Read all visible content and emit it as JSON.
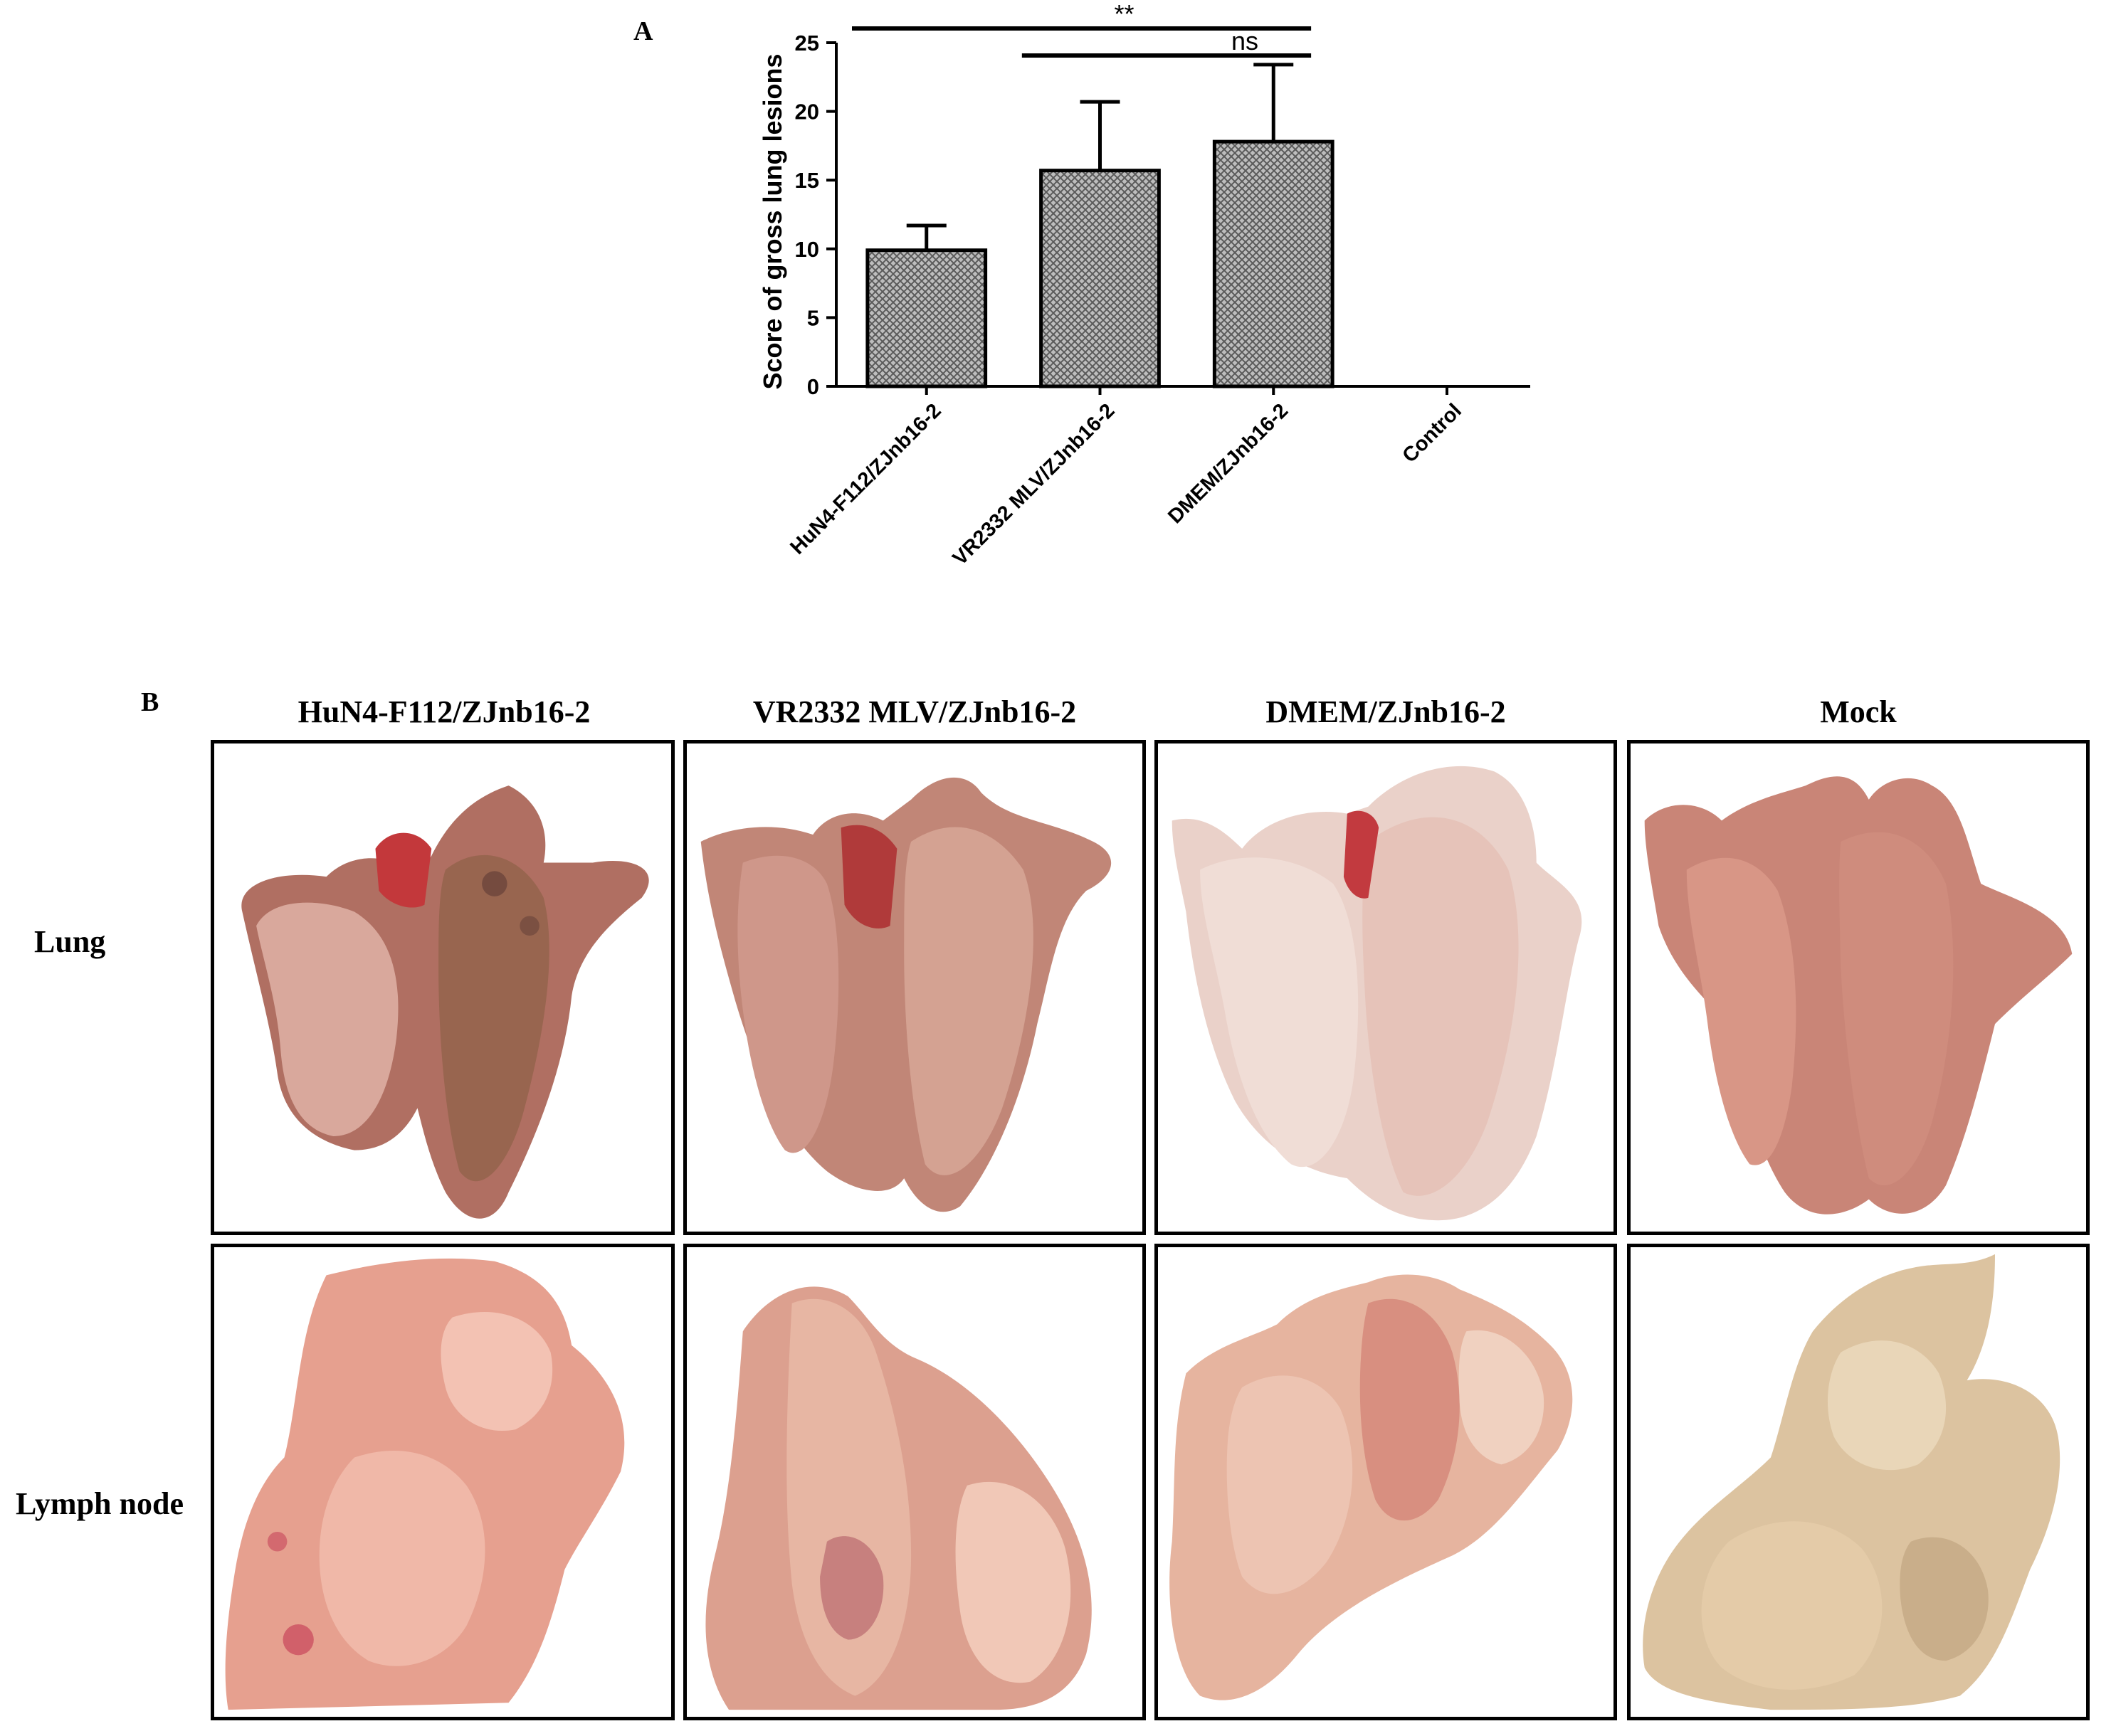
{
  "panel_a": {
    "letter": "A"
  },
  "panel_b": {
    "letter": "B",
    "columns": [
      "HuN4-F112/ZJnb16-2",
      "VR2332 MLV/ZJnb16-2",
      "DMEM/ZJnb16-2",
      "Mock"
    ],
    "rows": [
      "Lung",
      "Lymph node"
    ]
  },
  "chart_data": {
    "type": "bar",
    "categories": [
      "HuN4-F112/ZJnb16-2",
      "VR2332 MLV/ZJnb16-2",
      "DMEM/ZJnb16-2",
      "Control"
    ],
    "values": [
      9.9,
      15.7,
      17.8,
      0
    ],
    "error_upper": [
      11.7,
      20.7,
      23.4,
      0
    ],
    "ylabel": "Score of gross lung lesions",
    "xlabel": "",
    "ylim": [
      0,
      25
    ],
    "yticks": [
      0,
      5,
      10,
      15,
      20,
      25
    ],
    "bar_fill": "crosshatch-gray",
    "significance": [
      {
        "from": 0,
        "to": 2,
        "label": "**"
      },
      {
        "from": 1,
        "to": 2,
        "label": "ns"
      }
    ]
  },
  "colors": {
    "lung_dark": "#b8675f",
    "lung_light": "#e9c6bc",
    "lymph_pink": "#e7a593",
    "lymph_pale": "#ddc8a4",
    "hatch": "#7a7a7a"
  }
}
